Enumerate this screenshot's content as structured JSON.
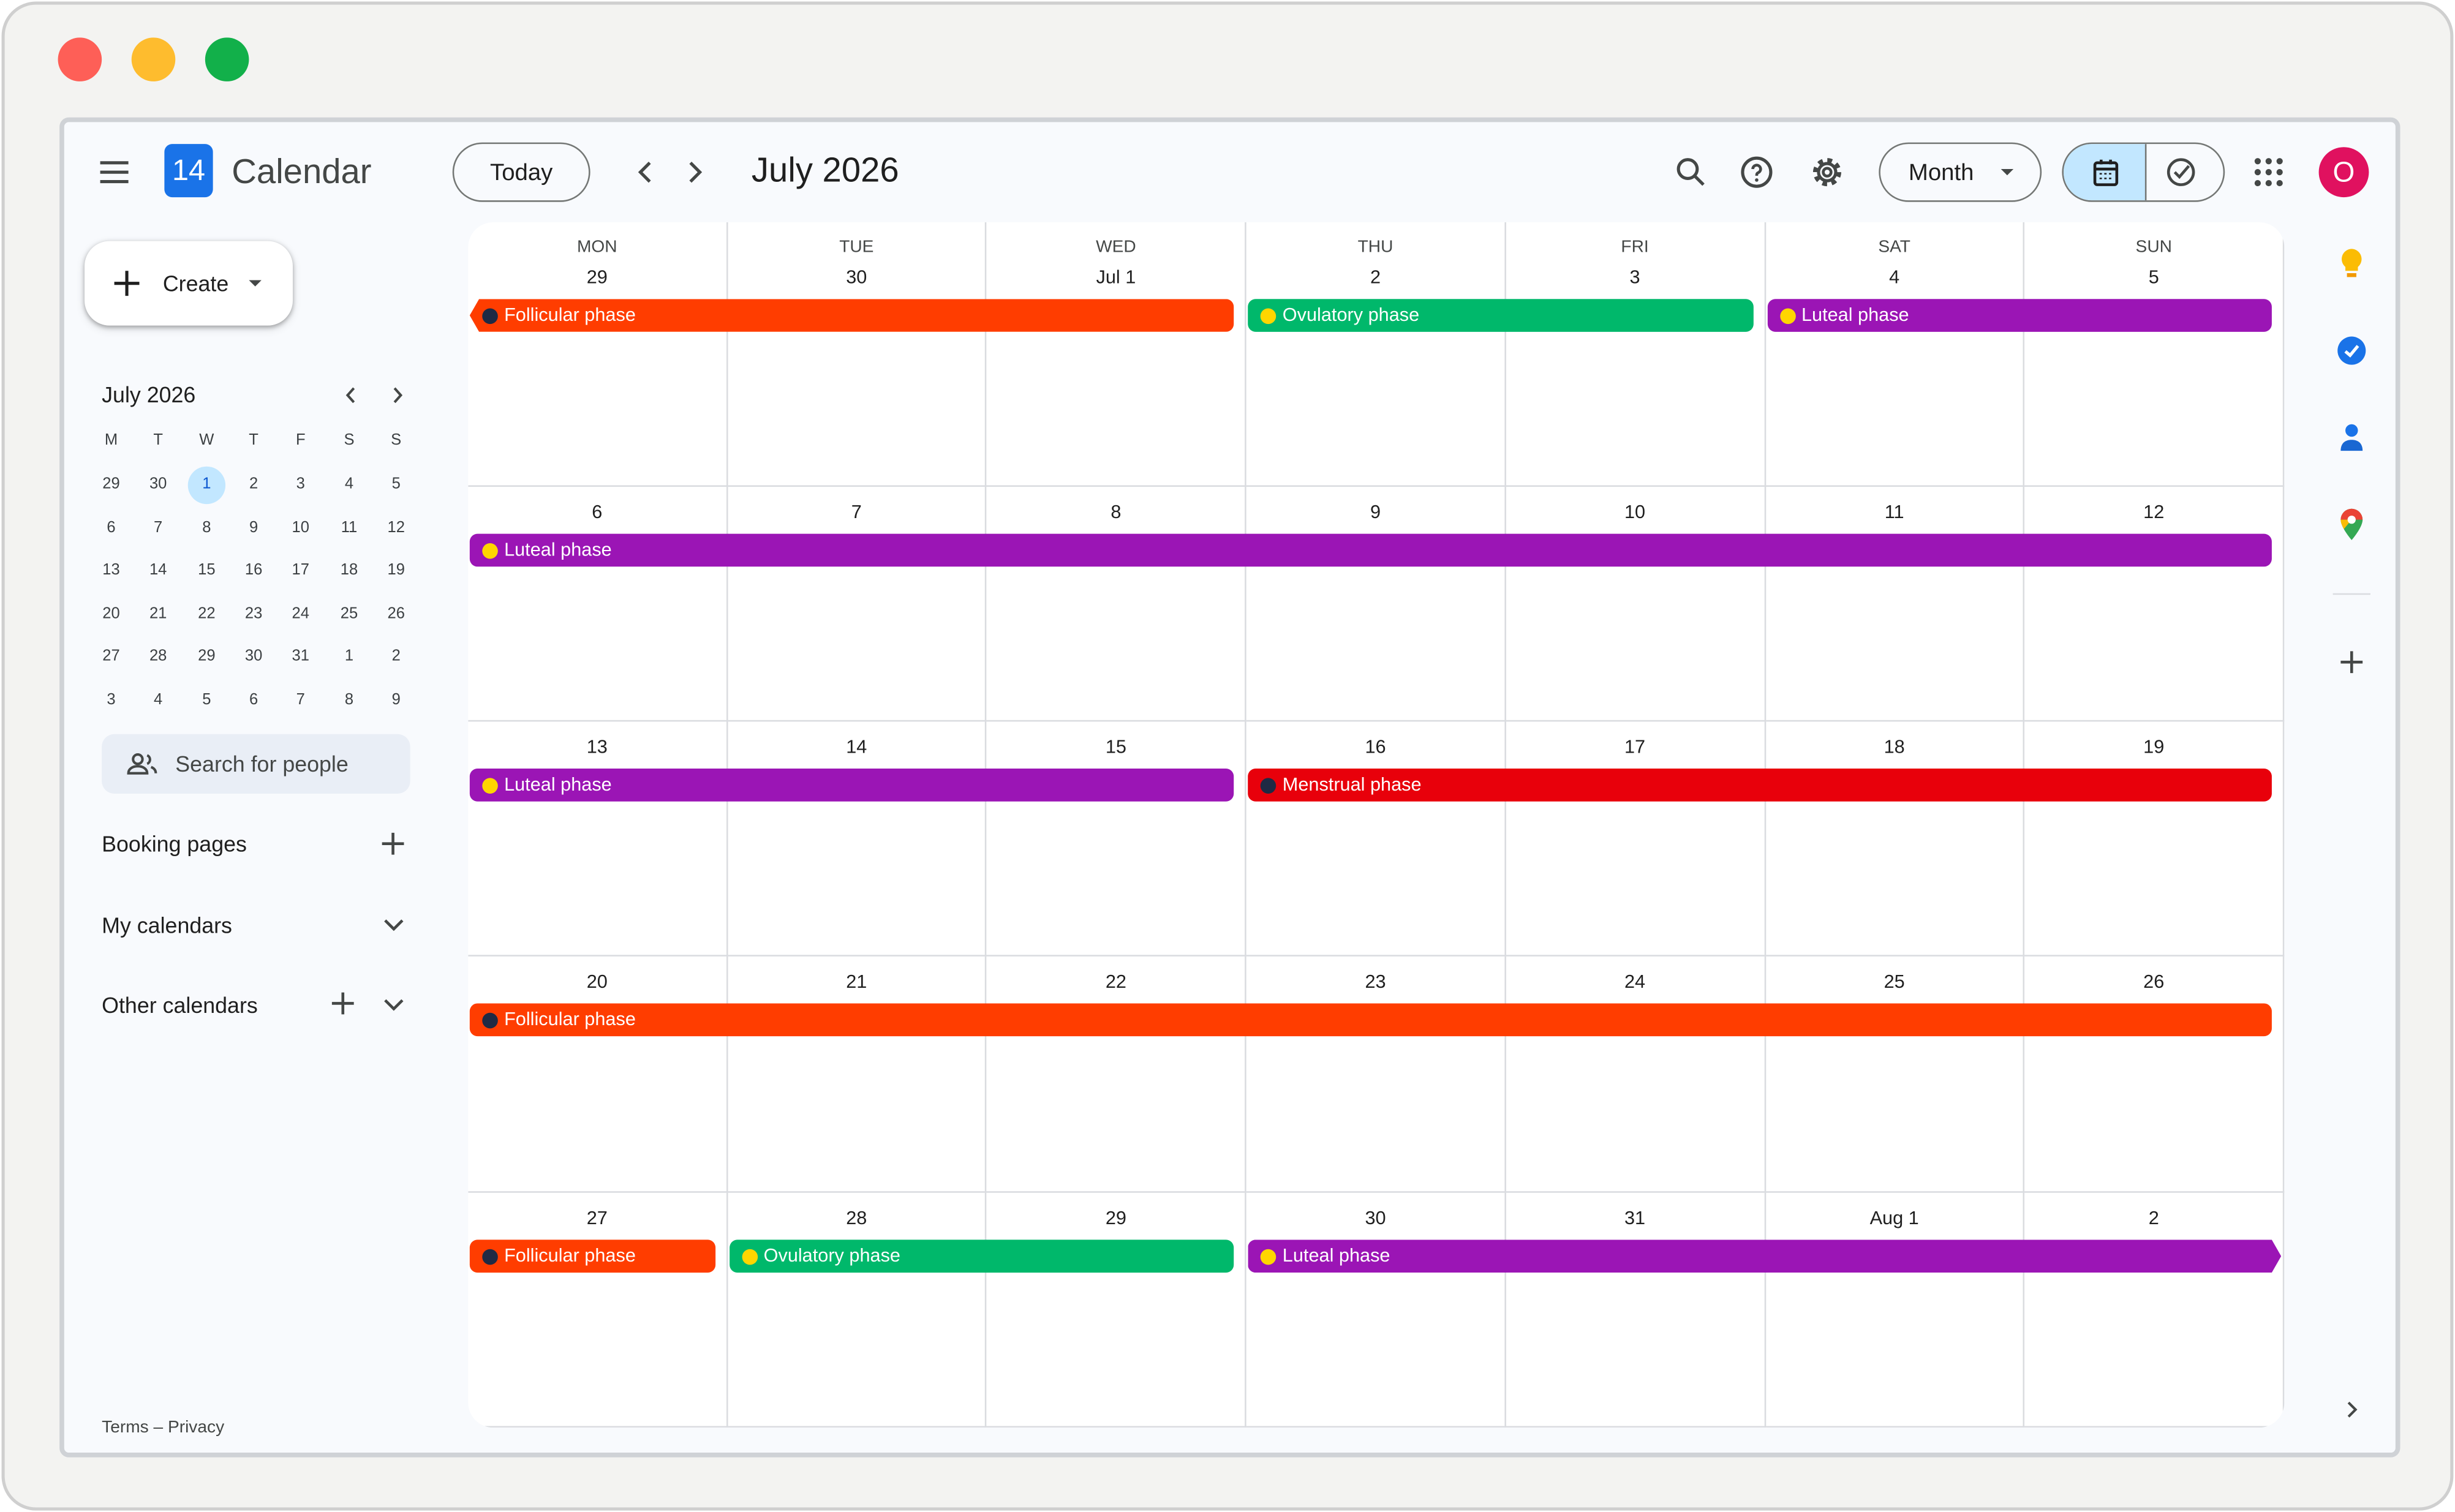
{
  "header": {
    "logo_day": "14",
    "app_name": "Calendar",
    "today_button": "Today",
    "title": "July 2026",
    "view_button": "Month",
    "avatar": "O"
  },
  "sidebar": {
    "create_button": "Create",
    "mini_calendar": {
      "title": "July 2026",
      "weekdays": [
        "M",
        "T",
        "W",
        "T",
        "F",
        "S",
        "S"
      ],
      "weeks": [
        [
          29,
          30,
          1,
          2,
          3,
          4,
          5
        ],
        [
          6,
          7,
          8,
          9,
          10,
          11,
          12
        ],
        [
          13,
          14,
          15,
          16,
          17,
          18,
          19
        ],
        [
          20,
          21,
          22,
          23,
          24,
          25,
          26
        ],
        [
          27,
          28,
          29,
          30,
          31,
          1,
          2
        ],
        [
          3,
          4,
          5,
          6,
          7,
          8,
          9
        ]
      ]
    },
    "search": "Search for people",
    "sections": [
      "Booking pages",
      "My calendars",
      "Other calendars"
    ],
    "footer": "Terms – Privacy"
  },
  "calendar": {
    "weekdays": [
      "MON",
      "TUE",
      "WED",
      "THU",
      "FRI",
      "SAT",
      "SUN"
    ],
    "weeks": [
      {
        "days": [
          "29",
          "30",
          "Jul 1",
          "2",
          "3",
          "4",
          "5"
        ],
        "events": [
          {
            "label": "Follicular phase",
            "color": "#ff3d00",
            "icon_color": "#1f2a44"
          },
          {
            "label": "Ovulatory phase",
            "color": "#00b86b",
            "icon_color": "#ffd600"
          },
          {
            "label": "Luteal phase",
            "color": "#9b15b5",
            "icon_color": "#ffd600"
          }
        ]
      },
      {
        "days": [
          "6",
          "7",
          "8",
          "9",
          "10",
          "11",
          "12"
        ],
        "events": [
          {
            "label": "Luteal phase",
            "color": "#9b15b5",
            "icon_color": "#ffd600"
          }
        ]
      },
      {
        "days": [
          "13",
          "14",
          "15",
          "16",
          "17",
          "18",
          "19"
        ],
        "events": [
          {
            "label": "Luteal phase",
            "color": "#9b15b5",
            "icon_color": "#ffd600"
          },
          {
            "label": "Menstrual phase",
            "color": "#e8000b",
            "icon_color": "#1f2a44"
          }
        ]
      },
      {
        "days": [
          "20",
          "21",
          "22",
          "23",
          "24",
          "25",
          "26"
        ],
        "events": [
          {
            "label": "Follicular phase",
            "color": "#ff3d00",
            "icon_color": "#1f2a44"
          }
        ]
      },
      {
        "days": [
          "27",
          "28",
          "29",
          "30",
          "31",
          "Aug 1",
          "2"
        ],
        "events": [
          {
            "label": "Follicular phase",
            "color": "#ff3d00",
            "icon_color": "#1f2a44"
          },
          {
            "label": "Ovulatory phase",
            "color": "#00b86b",
            "icon_color": "#ffd600"
          },
          {
            "label": "Luteal phase",
            "color": "#9b15b5",
            "icon_color": "#ffd600"
          }
        ]
      }
    ]
  }
}
